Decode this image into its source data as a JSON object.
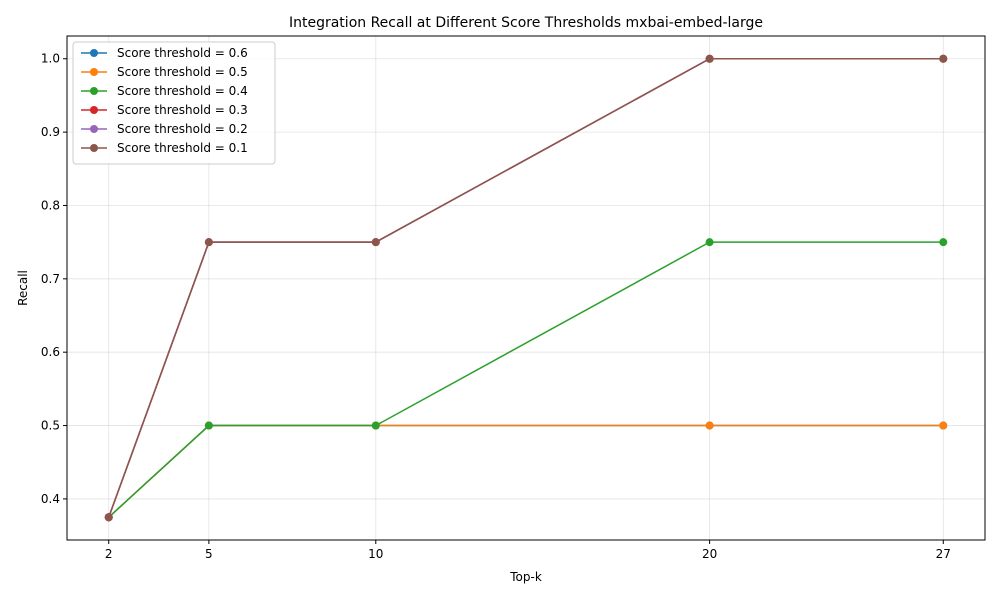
{
  "chart_data": {
    "type": "line",
    "title": "Integration Recall at Different Score Thresholds mxbai-embed-large",
    "xlabel": "Top-k",
    "ylabel": "Recall",
    "x": [
      2,
      5,
      10,
      20,
      27
    ],
    "xticks": [
      "2",
      "5",
      "10",
      "20",
      "27"
    ],
    "yticks": [
      "0.4",
      "0.5",
      "0.6",
      "0.7",
      "0.8",
      "0.9",
      "1.0"
    ],
    "xlim": [
      0.75,
      28.25
    ],
    "ylim": [
      0.344,
      1.031
    ],
    "grid": true,
    "legend_position": "top-left",
    "series": [
      {
        "name": "Score threshold = 0.6",
        "color": "#1f77b4",
        "values": [
          0.375,
          0.5,
          0.5,
          0.5,
          0.5
        ]
      },
      {
        "name": "Score threshold = 0.5",
        "color": "#ff7f0e",
        "values": [
          0.375,
          0.5,
          0.5,
          0.5,
          0.5
        ]
      },
      {
        "name": "Score threshold = 0.4",
        "color": "#2ca02c",
        "values": [
          0.375,
          0.5,
          0.5,
          0.75,
          0.75
        ]
      },
      {
        "name": "Score threshold = 0.3",
        "color": "#d62728",
        "values": [
          0.375,
          0.75,
          0.75,
          1.0,
          1.0
        ]
      },
      {
        "name": "Score threshold = 0.2",
        "color": "#9467bd",
        "values": [
          0.375,
          0.75,
          0.75,
          1.0,
          1.0
        ]
      },
      {
        "name": "Score threshold = 0.1",
        "color": "#8c564b",
        "values": [
          0.375,
          0.75,
          0.75,
          1.0,
          1.0
        ]
      }
    ]
  }
}
